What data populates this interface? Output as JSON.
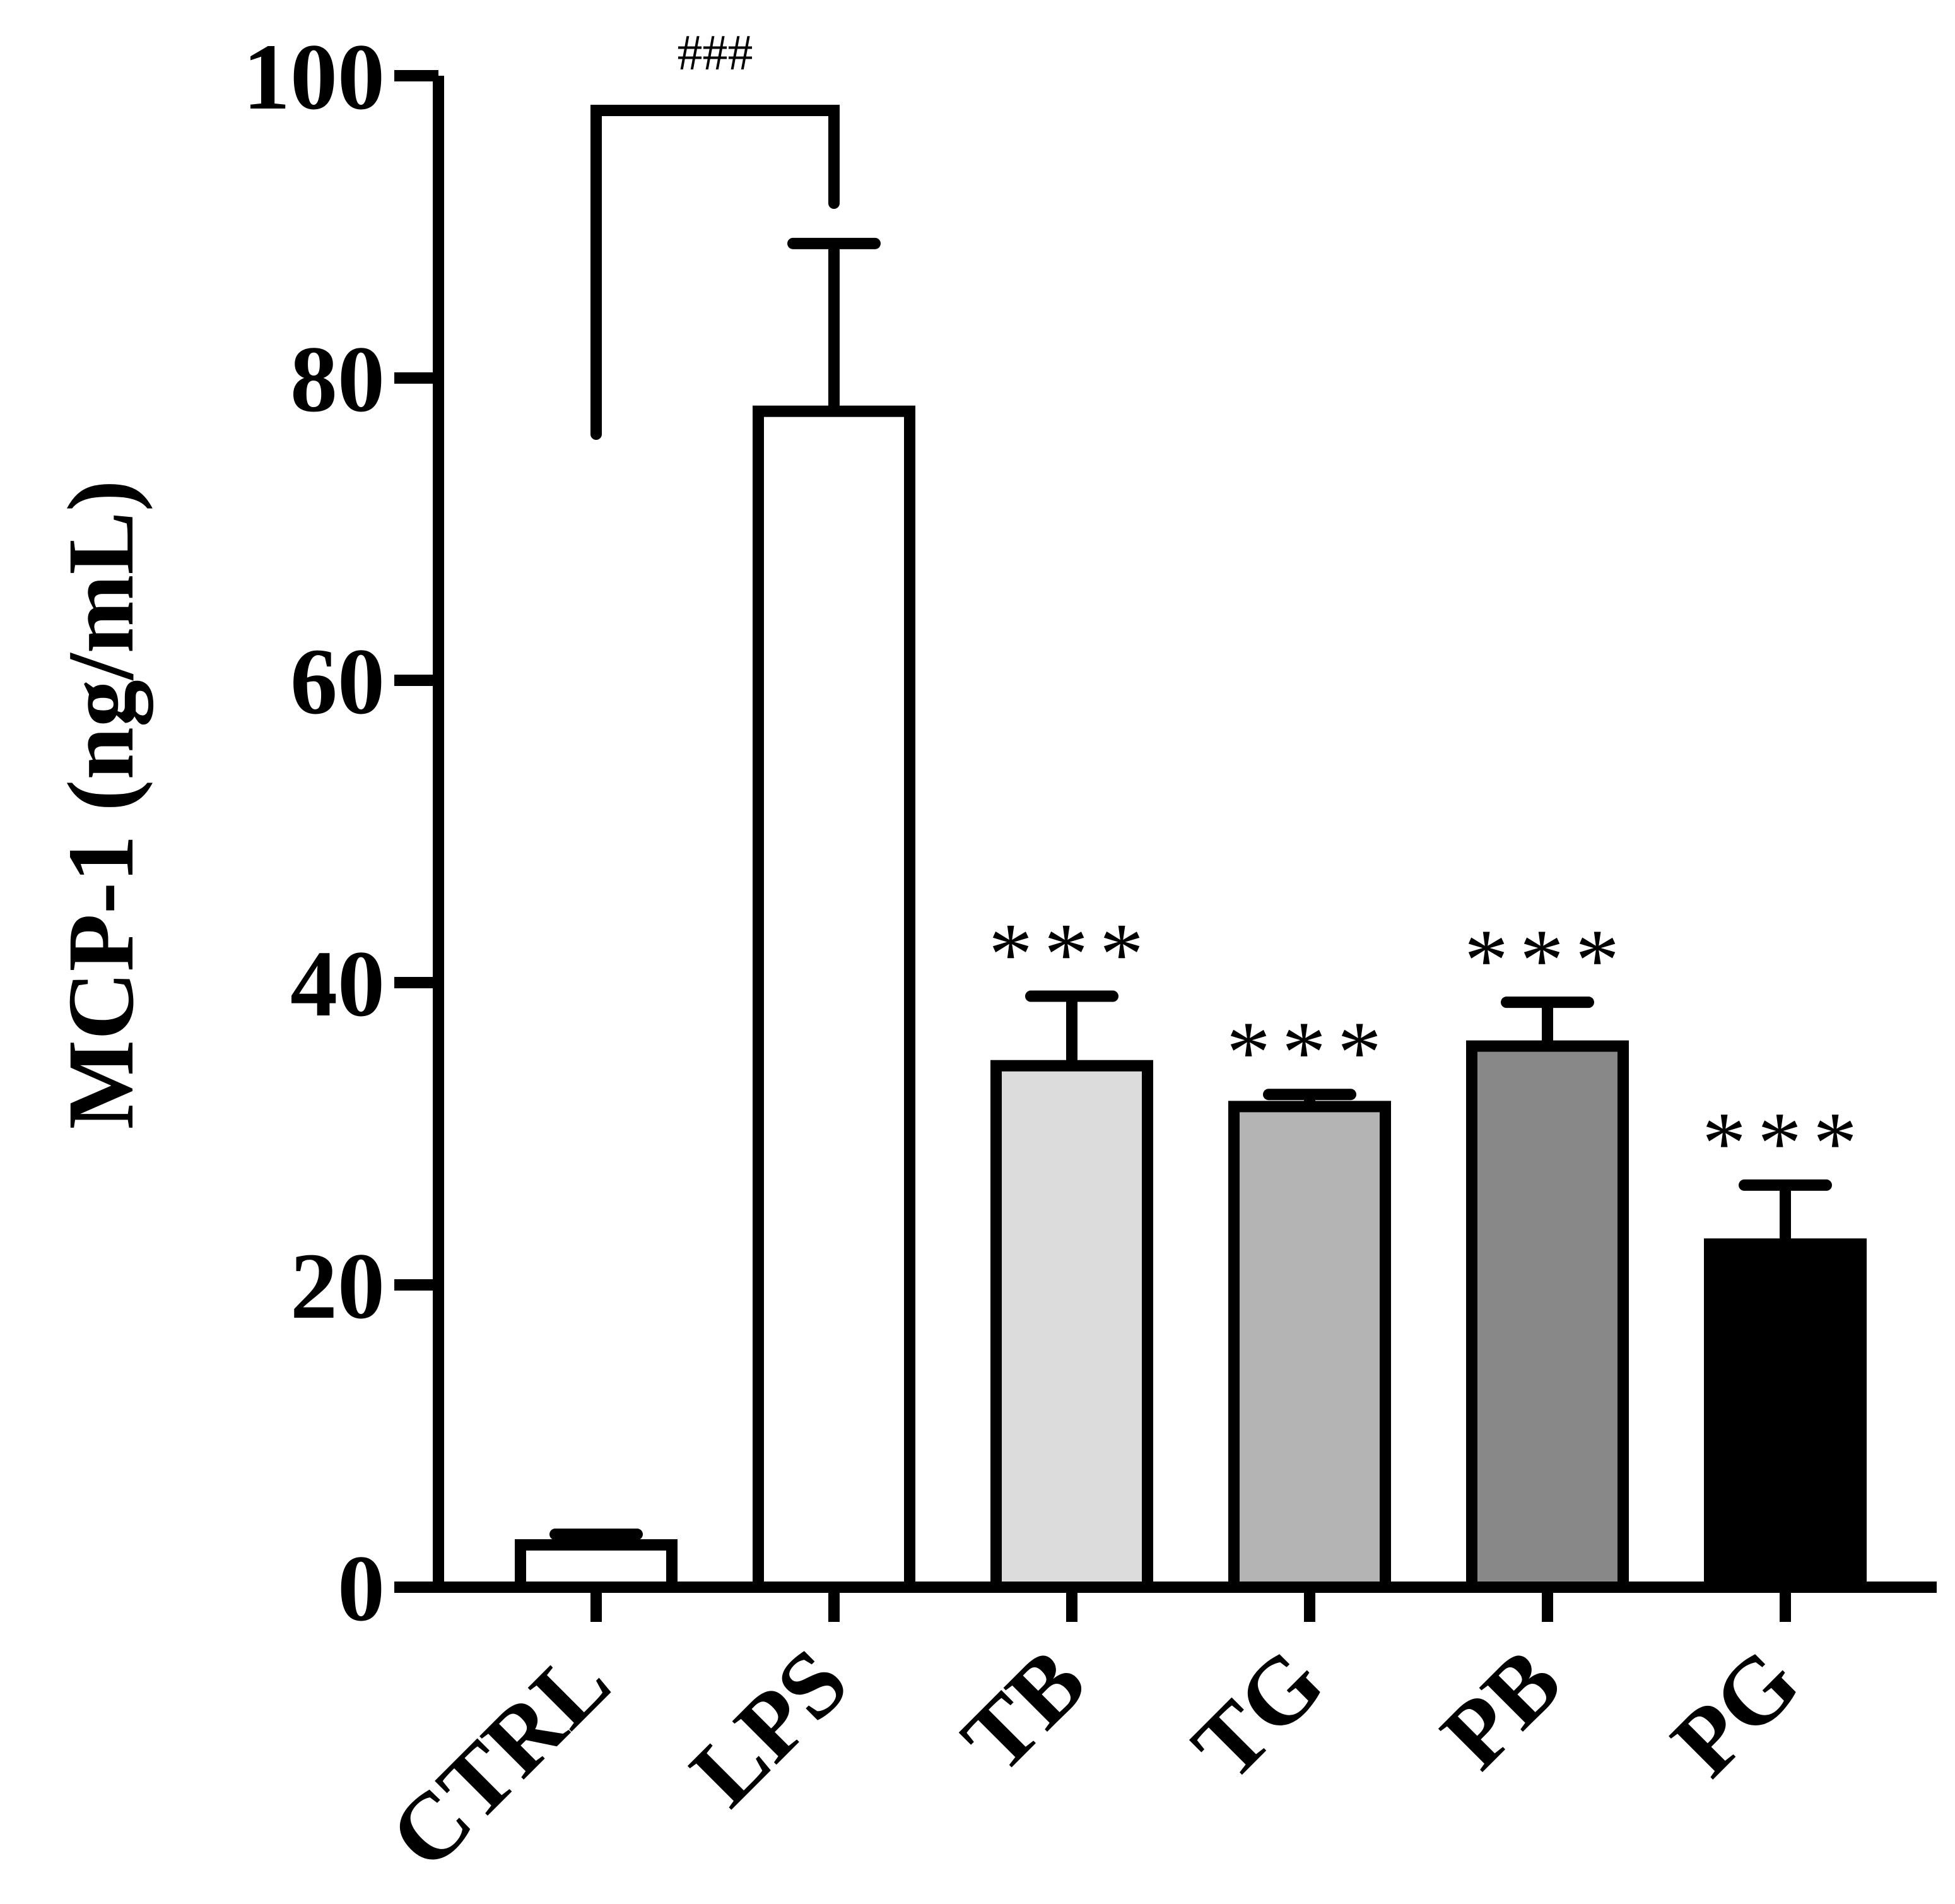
{
  "chart_data": {
    "type": "bar",
    "ylabel": "MCP-1 (ng/mL)",
    "xlabel": "",
    "ylim": [
      0,
      100
    ],
    "yticks": [
      0,
      20,
      40,
      60,
      80,
      100
    ],
    "categories": [
      "CTRL",
      "LPS",
      "TB",
      "TG",
      "PB",
      "PG"
    ],
    "values": [
      2.8,
      77.8,
      34.5,
      31.8,
      35.8,
      22.7
    ],
    "errors": [
      0.7,
      11.1,
      4.6,
      0.8,
      2.9,
      3.9
    ],
    "colors": [
      "#ffffff",
      "#ffffff",
      "#dcdcdc",
      "#b4b4b4",
      "#888888",
      "#000000"
    ],
    "significance": [
      "",
      "",
      "***",
      "***",
      "***",
      "***"
    ],
    "comparison": {
      "from": "CTRL",
      "to": "LPS",
      "label": "###"
    },
    "grid": false,
    "legend": "none"
  }
}
